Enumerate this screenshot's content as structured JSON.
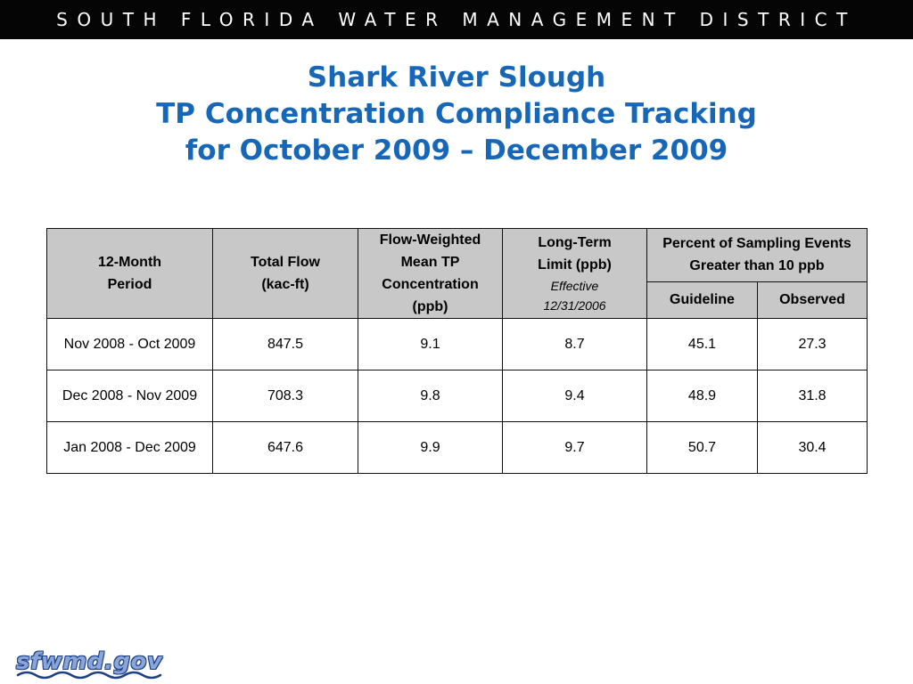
{
  "banner": "SOUTH FLORIDA WATER MANAGEMENT DISTRICT",
  "title": {
    "line1": "Shark River Slough",
    "line2": "TP Concentration Compliance Tracking",
    "line3": "for October 2009 – December 2009"
  },
  "table": {
    "headers": {
      "period_line1": "12-Month",
      "period_line2": "Period",
      "flow_line1": "Total Flow",
      "flow_line2": "(kac-ft)",
      "fwm_line1": "Flow-Weighted",
      "fwm_line2": "Mean TP",
      "fwm_line3": "Concentration",
      "fwm_line4": "(ppb)",
      "ltl_line1": "Long-Term",
      "ltl_line2": "Limit (ppb)",
      "ltl_eff1": "Effective",
      "ltl_eff2": "12/31/2006",
      "pct_line1": "Percent of Sampling Events",
      "pct_line2": "Greater than 10 ppb",
      "guideline": "Guideline",
      "observed": "Observed"
    },
    "rows": [
      {
        "period": "Nov 2008 - Oct 2009",
        "flow": "847.5",
        "fwm": "9.1",
        "limit": "8.7",
        "guideline": "45.1",
        "observed": "27.3"
      },
      {
        "period": "Dec 2008 - Nov 2009",
        "flow": "708.3",
        "fwm": "9.8",
        "limit": "9.4",
        "guideline": "48.9",
        "observed": "31.8"
      },
      {
        "period": "Jan 2008 - Dec 2009",
        "flow": "647.6",
        "fwm": "9.9",
        "limit": "9.7",
        "guideline": "50.7",
        "observed": "30.4"
      }
    ]
  },
  "logo": {
    "text": "sfwmd.gov",
    "colors": {
      "fill": "#8aa6d8",
      "outline": "#1d3f86"
    }
  },
  "colors": {
    "banner_bg": "#050505",
    "title": "#1667b8",
    "header_bg": "#c8c8c8"
  }
}
